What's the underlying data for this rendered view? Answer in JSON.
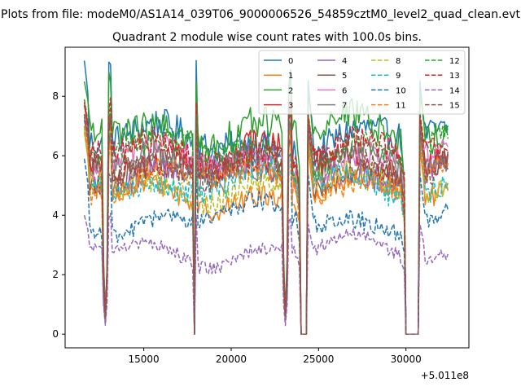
{
  "suptitle": "Plots from file: modeM0/AS1A14_039T06_9000006526_54859cztM0_level2_quad_clean.evt",
  "chart_data": {
    "type": "line",
    "title": "Quadrant 2 module wise count rates with 100.0s bins.",
    "xlabel": "",
    "ylabel": "",
    "x_offset_label": "+5.011e8",
    "xlim": [
      10500,
      33600
    ],
    "ylim": [
      -0.46,
      9.65
    ],
    "x_ticks": [
      15000,
      20000,
      25000,
      30000
    ],
    "x_tick_labels": [
      "15000",
      "20000",
      "25000",
      "30000"
    ],
    "y_ticks": [
      0,
      2,
      4,
      6,
      8
    ],
    "y_tick_labels": [
      "0",
      "2",
      "4",
      "6",
      "8"
    ],
    "legend_position": "top-right",
    "legend_columns": 4,
    "time_range": [
      11600,
      32400
    ],
    "bin_size_s": 100,
    "gaps": [
      [
        24000,
        24300
      ],
      [
        30000,
        30700
      ]
    ],
    "dips": [
      12800,
      17900,
      23100
    ],
    "series": [
      {
        "name": "0",
        "color": "#1f77b4",
        "style": "solid",
        "level": 6.5,
        "peak": 9.2
      },
      {
        "name": "1",
        "color": "#ff7f0e",
        "style": "solid",
        "level": 4.7,
        "peak": 6.8
      },
      {
        "name": "2",
        "color": "#2ca02c",
        "style": "solid",
        "level": 6.9,
        "peak": 8.5
      },
      {
        "name": "3",
        "color": "#d62728",
        "style": "solid",
        "level": 5.9,
        "peak": 7.7
      },
      {
        "name": "4",
        "color": "#9467bd",
        "style": "solid",
        "level": 5.5,
        "peak": 7.3
      },
      {
        "name": "5",
        "color": "#8c564b",
        "style": "solid",
        "level": 5.5,
        "peak": 7.2
      },
      {
        "name": "6",
        "color": "#e377c2",
        "style": "solid",
        "level": 5.8,
        "peak": 7.4
      },
      {
        "name": "7",
        "color": "#7f7f7f",
        "style": "solid",
        "level": 5.6,
        "peak": 7.3
      },
      {
        "name": "8",
        "color": "#bcbd22",
        "style": "dashed",
        "level": 5.0,
        "peak": 6.9
      },
      {
        "name": "9",
        "color": "#17becf",
        "style": "dashed",
        "level": 5.1,
        "peak": 7.0
      },
      {
        "name": "10",
        "color": "#1f77b4",
        "style": "dashed",
        "level": 3.9,
        "peak": 5.9
      },
      {
        "name": "11",
        "color": "#ff7f0e",
        "style": "dashed",
        "level": 5.2,
        "peak": 7.0
      },
      {
        "name": "12",
        "color": "#2ca02c",
        "style": "dashed",
        "level": 6.1,
        "peak": 7.9
      },
      {
        "name": "13",
        "color": "#d62728",
        "style": "dashed",
        "level": 6.0,
        "peak": 7.8
      },
      {
        "name": "14",
        "color": "#9467bd",
        "style": "dashed",
        "level": 2.8,
        "peak": 4.0
      },
      {
        "name": "15",
        "color": "#8c564b",
        "style": "dashed",
        "level": 5.7,
        "peak": 7.4
      }
    ]
  }
}
